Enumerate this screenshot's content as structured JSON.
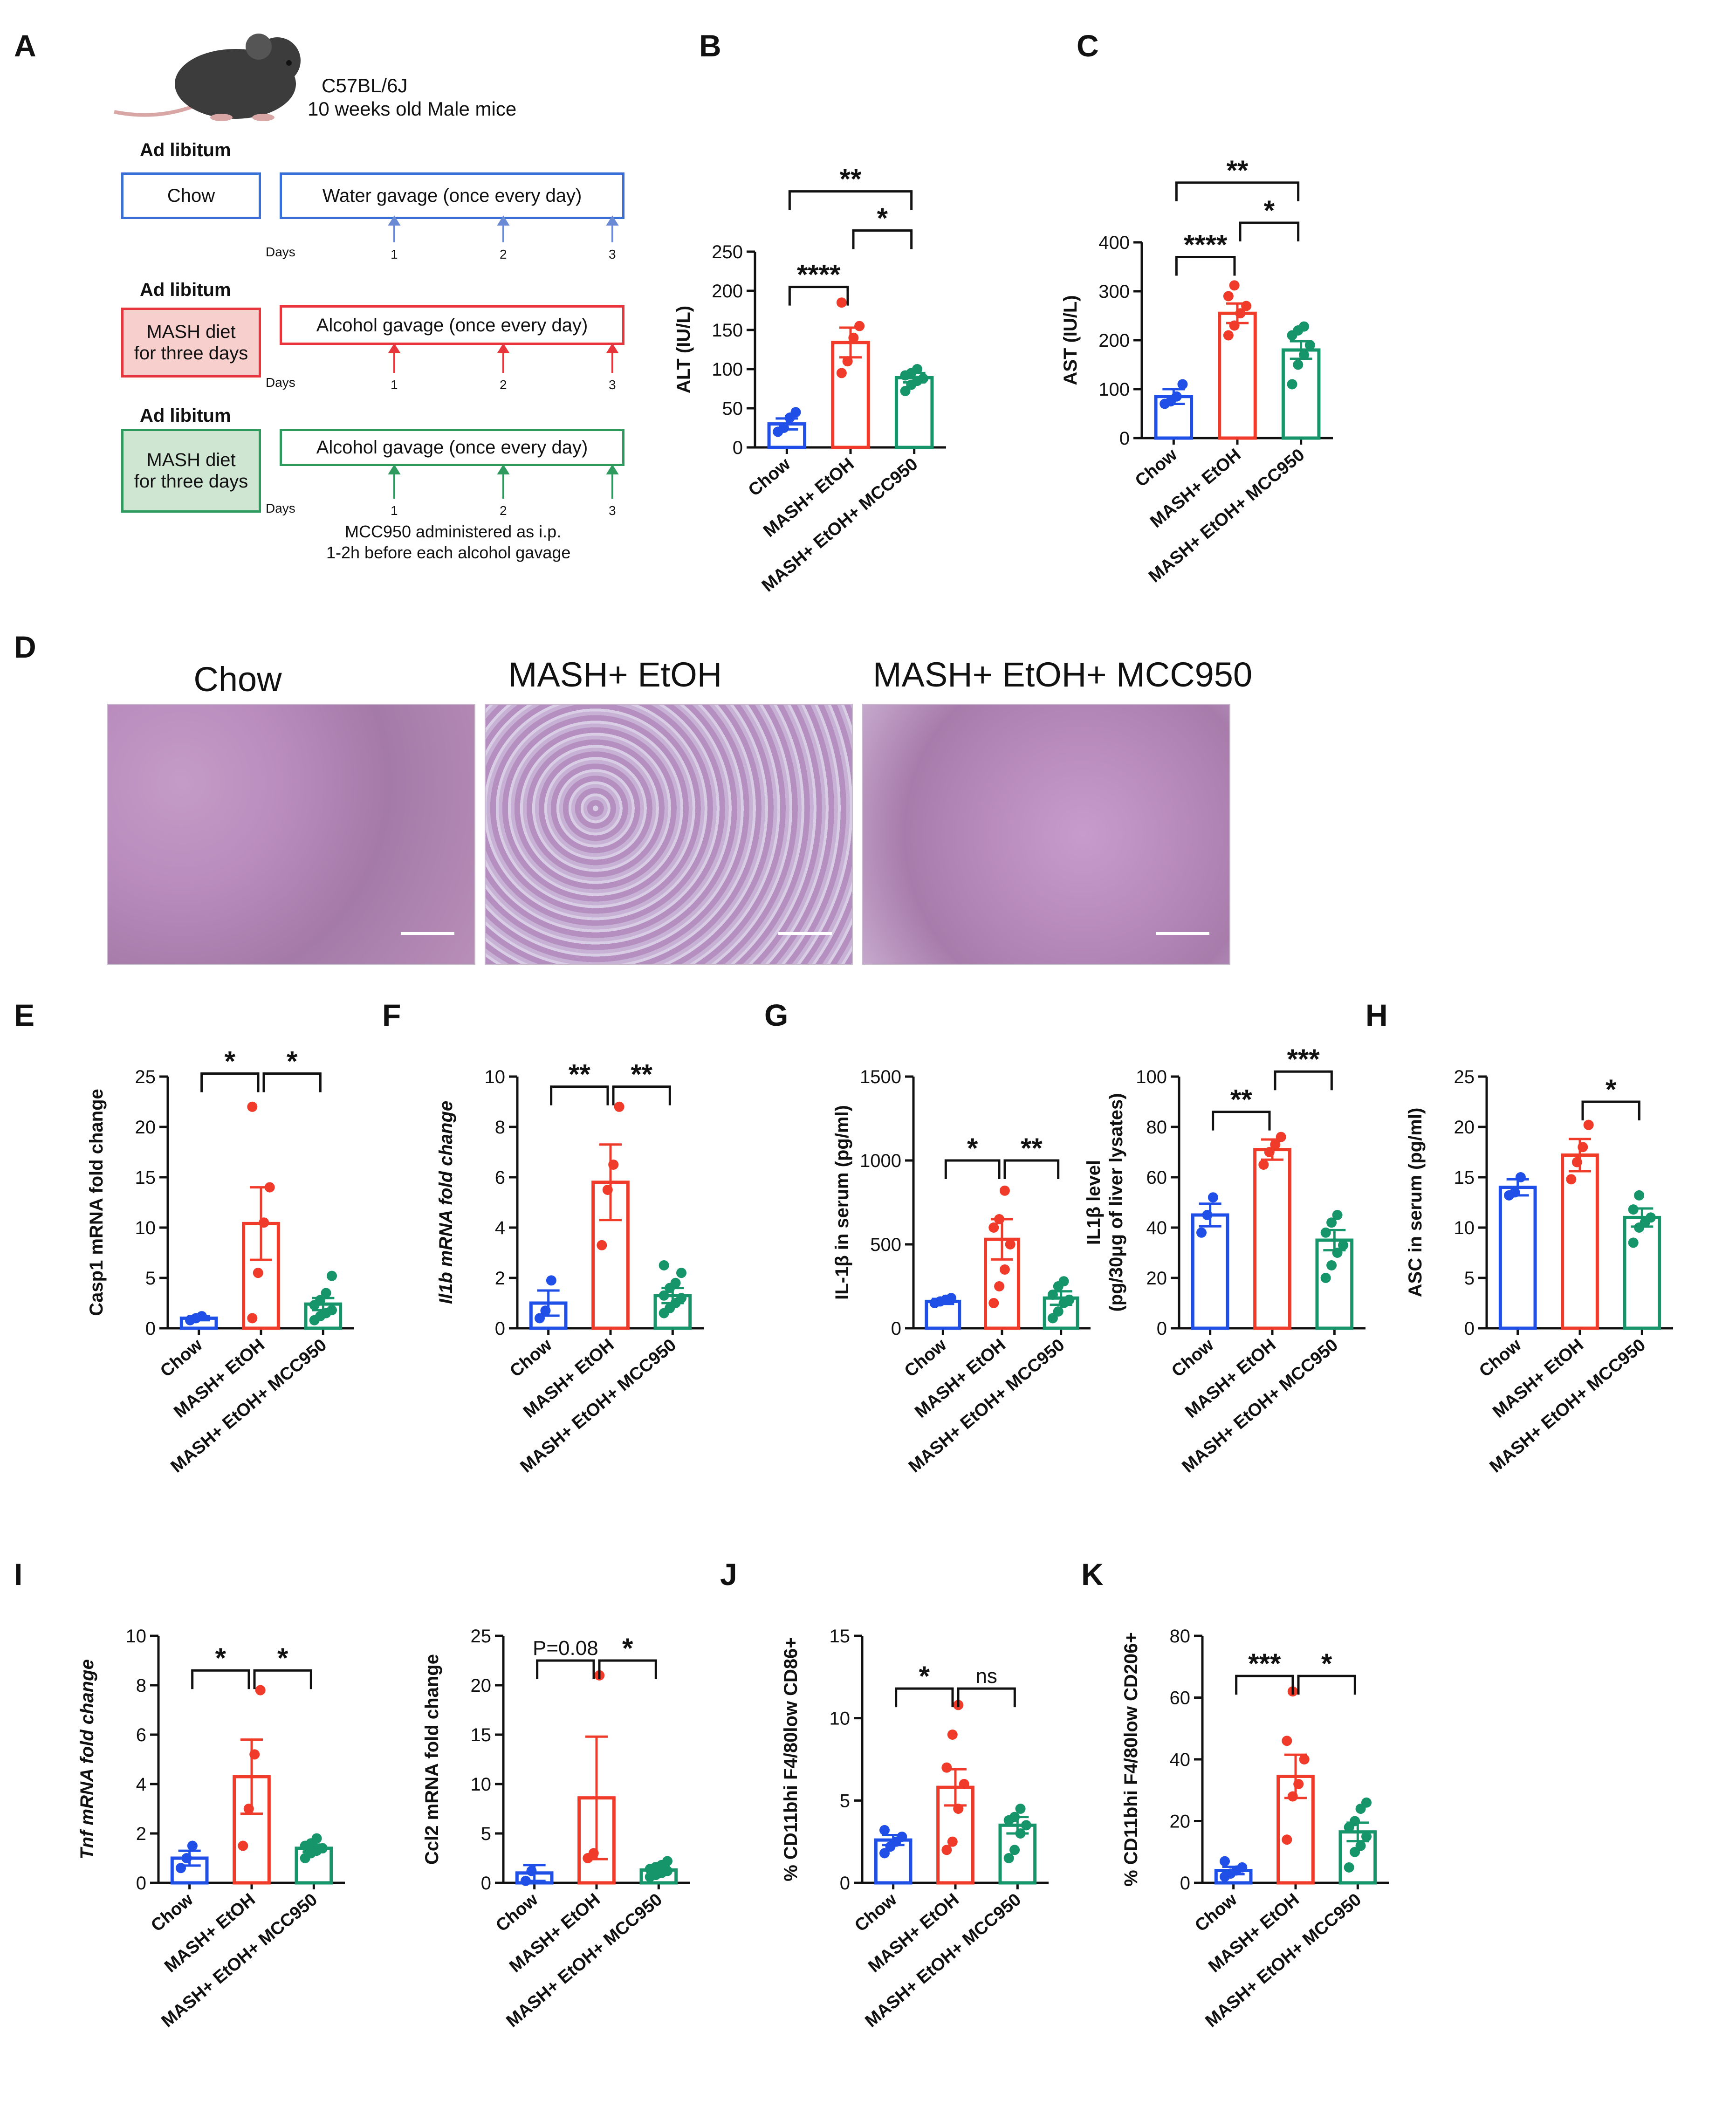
{
  "colors": {
    "chow": "#1f4fe6",
    "etoh": "#f03a2a",
    "mcc": "#17956a",
    "axis": "#111111"
  },
  "groups": [
    "Chow",
    "MASH+ EtOH",
    "MASH+ EtOH+ MCC950"
  ],
  "panel_letters": {
    "A": "A",
    "B": "B",
    "C": "C",
    "D": "D",
    "E": "E",
    "F": "F",
    "G": "G",
    "H": "H",
    "I": "I",
    "J": "J",
    "K": "K"
  },
  "schema": {
    "mouse_icon": "mouse-icon",
    "strain": "C57BL/6J",
    "age": "10 weeks old Male mice",
    "rows": [
      {
        "head": "Ad libitum",
        "diet": "Chow",
        "treatment": "Water gavage (once every day)",
        "days_label": "Days",
        "days": [
          "1",
          "2",
          "3"
        ],
        "color": "#3a6fd8",
        "fill": "#ffffff"
      },
      {
        "head": "Ad libitum",
        "diet": "MASH diet\nfor three days",
        "treatment": "Alcohol gavage (once every day)",
        "days_label": "Days",
        "days": [
          "1",
          "2",
          "3"
        ],
        "color": "#e8353b",
        "fill": "#f7cfcd"
      },
      {
        "head": "Ad libitum",
        "diet": "MASH diet\nfor three days",
        "treatment": "Alcohol gavage (once every day)",
        "days_label": "Days",
        "days": [
          "1",
          "2",
          "3"
        ],
        "color": "#2e9a5e",
        "fill": "#cfe6d3"
      }
    ],
    "note_line1": "MCC950 administered as i.p.",
    "note_line2": "1-2h before each alcohol gavage"
  },
  "histology": {
    "titles": [
      "Chow",
      "MASH+ EtOH",
      "MASH+ EtOH+ MCC950"
    ]
  },
  "chart_data": [
    {
      "id": "B",
      "type": "bar",
      "title": "",
      "ylabel": "ALT (IU/L)",
      "ylim": [
        0,
        250
      ],
      "yticks": [
        0,
        50,
        100,
        150,
        200,
        250
      ],
      "categories": [
        "Chow",
        "MASH+ EtOH",
        "MASH+ EtOH+ MCC950"
      ],
      "values": [
        30,
        134,
        89
      ],
      "sem": [
        7,
        19,
        6
      ],
      "points": [
        [
          20,
          25,
          38,
          45
        ],
        [
          95,
          110,
          140,
          155,
          185
        ],
        [
          72,
          80,
          85,
          88,
          92,
          95,
          100
        ]
      ],
      "sig": [
        {
          "a": 0,
          "b": 1,
          "label": "****",
          "y": 205
        },
        {
          "a": 1,
          "b": 2,
          "label": "*",
          "y": 277
        },
        {
          "a": 0,
          "b": 2,
          "label": "**",
          "y": 327
        }
      ]
    },
    {
      "id": "C",
      "type": "bar",
      "title": "",
      "ylabel": "AST (IU/L)",
      "ylim": [
        0,
        400
      ],
      "yticks": [
        0,
        100,
        200,
        300,
        400
      ],
      "categories": [
        "Chow",
        "MASH+ EtOH",
        "MASH+ EtOH+ MCC950"
      ],
      "values": [
        85,
        255,
        180
      ],
      "sem": [
        15,
        20,
        18
      ],
      "points": [
        [
          70,
          75,
          85,
          110
        ],
        [
          210,
          230,
          255,
          270,
          290,
          312
        ],
        [
          110,
          150,
          170,
          190,
          210,
          220,
          228
        ]
      ],
      "sig": [
        {
          "a": 0,
          "b": 1,
          "label": "****",
          "y": 370
        },
        {
          "a": 1,
          "b": 2,
          "label": "*",
          "y": 440
        },
        {
          "a": 0,
          "b": 2,
          "label": "**",
          "y": 522
        }
      ]
    },
    {
      "id": "E",
      "type": "bar",
      "title": "",
      "ylabel": "Casp1 mRNA fold change",
      "ylabel_italic_part": "Casp1",
      "ylim": [
        0,
        25
      ],
      "yticks": [
        0,
        5,
        10,
        15,
        20,
        25
      ],
      "categories": [
        "Chow",
        "MASH+ EtOH",
        "MASH+ EtOH+ MCC950"
      ],
      "values": [
        1.0,
        10.4,
        2.4
      ],
      "sem": [
        0.2,
        3.6,
        0.6
      ],
      "points": [
        [
          0.8,
          1.0,
          1.2
        ],
        [
          1.0,
          5.5,
          10.5,
          14.0,
          22.0
        ],
        [
          0.8,
          1.2,
          1.5,
          1.8,
          2.3,
          2.8,
          3.5,
          5.2
        ]
      ],
      "sig": [
        {
          "a": 0,
          "b": 1,
          "label": "*",
          "y": 25.3
        },
        {
          "a": 1,
          "b": 2,
          "label": "*",
          "y": 25.3
        }
      ]
    },
    {
      "id": "F",
      "type": "bar",
      "title": "",
      "ylabel": "Il1b mRNA fold change",
      "ylabel_italic_part": "all",
      "ylim": [
        0,
        10
      ],
      "yticks": [
        0,
        2,
        4,
        6,
        8,
        10
      ],
      "categories": [
        "Chow",
        "MASH+ EtOH",
        "MASH+ EtOH+ MCC950"
      ],
      "values": [
        1.0,
        5.8,
        1.3
      ],
      "sem": [
        0.5,
        1.5,
        0.3
      ],
      "points": [
        [
          0.4,
          0.7,
          1.9
        ],
        [
          3.3,
          5.5,
          6.5,
          8.8
        ],
        [
          0.6,
          0.8,
          1.0,
          1.2,
          1.3,
          1.6,
          1.8,
          2.2,
          2.5
        ]
      ],
      "sig": [
        {
          "a": 0,
          "b": 1,
          "label": "**",
          "y": 9.6
        },
        {
          "a": 1,
          "b": 2,
          "label": "**",
          "y": 9.6
        }
      ]
    },
    {
      "id": "G1",
      "type": "bar",
      "title": "",
      "ylabel": "IL-1β in serum (pg/ml)",
      "ylim": [
        0,
        1500
      ],
      "yticks": [
        0,
        500,
        1000,
        1500
      ],
      "categories": [
        "Chow",
        "MASH+ EtOH",
        "MASH+ EtOH+ MCC950"
      ],
      "values": [
        160,
        530,
        180
      ],
      "sem": [
        15,
        120,
        40
      ],
      "points": [
        [
          150,
          160,
          170,
          180
        ],
        [
          150,
          250,
          350,
          500,
          600,
          650,
          820
        ],
        [
          60,
          100,
          150,
          170,
          200,
          250,
          280
        ]
      ],
      "sig": [
        {
          "a": 0,
          "b": 1,
          "label": "*",
          "y": 1000
        },
        {
          "a": 1,
          "b": 2,
          "label": "**",
          "y": 1000
        }
      ]
    },
    {
      "id": "G2",
      "type": "bar",
      "title": "",
      "ylabel": "IL1β level",
      "ylabel2": "(pg/30μg of liver lysates)",
      "ylim": [
        0,
        100
      ],
      "yticks": [
        0,
        20,
        40,
        60,
        80,
        100
      ],
      "categories": [
        "Chow",
        "MASH+ EtOH",
        "MASH+ EtOH+ MCC950"
      ],
      "values": [
        45,
        71,
        35
      ],
      "sem": [
        4.5,
        4,
        4
      ],
      "points": [
        [
          38,
          45,
          52
        ],
        [
          65,
          70,
          73,
          76
        ],
        [
          20,
          25,
          30,
          33,
          38,
          42,
          45
        ]
      ],
      "sig": [
        {
          "a": 0,
          "b": 1,
          "label": "**",
          "y": 86
        },
        {
          "a": 1,
          "b": 2,
          "label": "***",
          "y": 102
        }
      ]
    },
    {
      "id": "H",
      "type": "bar",
      "title": "",
      "ylabel": "ASC in serum (pg/ml)",
      "ylim": [
        0,
        25
      ],
      "yticks": [
        0,
        5,
        10,
        15,
        20,
        25
      ],
      "categories": [
        "Chow",
        "MASH+ EtOH",
        "MASH+ EtOH+ MCC950"
      ],
      "values": [
        14,
        17.2,
        11
      ],
      "sem": [
        0.8,
        1.6,
        0.9
      ],
      "points": [
        [
          13.2,
          13.5,
          15.0
        ],
        [
          14.8,
          16.5,
          18.0,
          20.2
        ],
        [
          8.5,
          10.0,
          10.5,
          11.0,
          11.8,
          13.2
        ]
      ],
      "sig": [
        {
          "a": 1,
          "b": 2,
          "label": "*",
          "y": 22.5
        }
      ]
    },
    {
      "id": "I1",
      "type": "bar",
      "title": "",
      "ylabel": "Tnf mRNA fold change",
      "ylabel_italic_part": "all",
      "ylim": [
        0,
        10
      ],
      "yticks": [
        0,
        2,
        4,
        6,
        8,
        10
      ],
      "categories": [
        "Chow",
        "MASH+ EtOH",
        "MASH+ EtOH+ MCC950"
      ],
      "values": [
        1.0,
        4.3,
        1.4
      ],
      "sem": [
        0.3,
        1.5,
        0.15
      ],
      "points": [
        [
          0.6,
          1.0,
          1.5
        ],
        [
          1.5,
          3.0,
          5.2,
          7.8
        ],
        [
          1.0,
          1.2,
          1.3,
          1.4,
          1.5,
          1.6,
          1.8
        ]
      ],
      "sig": [
        {
          "a": 0,
          "b": 1,
          "label": "*",
          "y": 8.6
        },
        {
          "a": 1,
          "b": 2,
          "label": "*",
          "y": 8.6
        }
      ]
    },
    {
      "id": "I2",
      "type": "bar",
      "title": "",
      "ylabel": "Ccl2 mRNA fold change",
      "ylabel_italic_part": "Ccl2",
      "ylim": [
        0,
        25
      ],
      "yticks": [
        0,
        5,
        10,
        15,
        20,
        25
      ],
      "categories": [
        "Chow",
        "MASH+ EtOH",
        "MASH+ EtOH+ MCC950"
      ],
      "values": [
        1.0,
        8.6,
        1.3
      ],
      "sem": [
        0.8,
        6.2,
        0.3
      ],
      "points": [
        [
          0.2,
          1.2
        ],
        [
          2.5,
          3.0,
          21.0
        ],
        [
          0.6,
          0.8,
          1.0,
          1.2,
          1.4,
          1.6,
          1.8,
          2.2
        ]
      ],
      "sig": [
        {
          "a": 0,
          "b": 1,
          "label": "P=0.08",
          "y": 22.5,
          "plain": true
        },
        {
          "a": 1,
          "b": 2,
          "label": "*",
          "y": 22.5
        }
      ]
    },
    {
      "id": "J",
      "type": "bar",
      "title": "",
      "ylabel": "% CD11bhi F4/80low CD86+",
      "ylim": [
        0,
        15
      ],
      "yticks": [
        0,
        5,
        10,
        15
      ],
      "categories": [
        "Chow",
        "MASH+ EtOH",
        "MASH+ EtOH+ MCC950"
      ],
      "values": [
        2.6,
        5.8,
        3.5
      ],
      "sem": [
        0.3,
        1.1,
        0.5
      ],
      "points": [
        [
          1.8,
          2.2,
          2.5,
          2.8,
          3.2
        ],
        [
          2.0,
          2.5,
          4.5,
          6.0,
          7.0,
          9.0,
          10.8
        ],
        [
          1.5,
          2.0,
          3.0,
          3.5,
          3.8,
          4.0,
          4.5
        ]
      ],
      "sig": [
        {
          "a": 0,
          "b": 1,
          "label": "*",
          "y": 11.8
        },
        {
          "a": 1,
          "b": 2,
          "label": "ns",
          "y": 11.8,
          "plain": true
        }
      ]
    },
    {
      "id": "K",
      "type": "bar",
      "title": "",
      "ylabel": "% CD11bhi F4/80low CD206+",
      "ylim": [
        0,
        80
      ],
      "yticks": [
        0,
        20,
        40,
        60,
        80
      ],
      "categories": [
        "Chow",
        "MASH+ EtOH",
        "MASH+ EtOH+ MCC950"
      ],
      "values": [
        4,
        34.5,
        16.5
      ],
      "sem": [
        1.2,
        7,
        3
      ],
      "points": [
        [
          2,
          3,
          4,
          5,
          7
        ],
        [
          14,
          28,
          32,
          40,
          46,
          62
        ],
        [
          5,
          10,
          12,
          15,
          18,
          20,
          24,
          26
        ]
      ],
      "sig": [
        {
          "a": 0,
          "b": 1,
          "label": "***",
          "y": 67
        },
        {
          "a": 1,
          "b": 2,
          "label": "*",
          "y": 67
        }
      ]
    }
  ]
}
